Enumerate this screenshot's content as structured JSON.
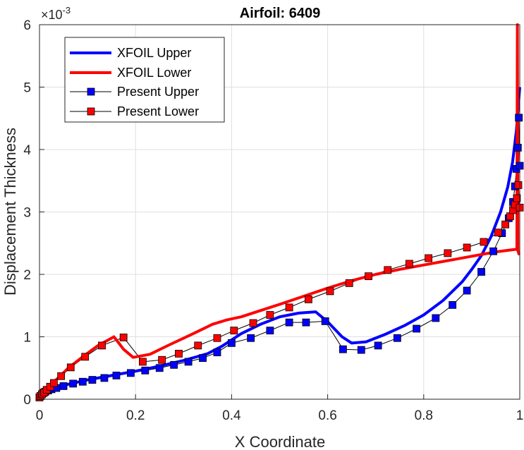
{
  "chart_data": {
    "type": "line",
    "title": "Airfoil: 6409",
    "xlabel": "X Coordinate",
    "ylabel": "Displacement Thickness",
    "xlim": [
      0,
      1
    ],
    "ylim": [
      0,
      0.006
    ],
    "y_exponent_label": "×10",
    "y_exponent_power": "-3",
    "grid": true,
    "legend_position": "top-left",
    "x_ticks": [
      "0",
      "0.2",
      "0.4",
      "0.6",
      "0.8",
      "1"
    ],
    "y_ticks": [
      "0",
      "1",
      "2",
      "3",
      "4",
      "5",
      "6"
    ],
    "series": [
      {
        "name": "XFOIL Upper",
        "color": "#0000ff",
        "style": "line",
        "x": [
          0,
          0.005,
          0.01,
          0.02,
          0.04,
          0.06,
          0.1,
          0.15,
          0.2,
          0.25,
          0.3,
          0.35,
          0.38,
          0.42,
          0.46,
          0.5,
          0.54,
          0.575,
          0.6,
          0.63,
          0.65,
          0.68,
          0.72,
          0.76,
          0.8,
          0.84,
          0.88,
          0.9,
          0.92,
          0.94,
          0.96,
          0.975,
          0.985,
          0.993,
          1.0
        ],
        "y": [
          3e-05,
          7e-05,
          0.0001,
          0.00014,
          0.0002,
          0.00024,
          0.00031,
          0.00038,
          0.00045,
          0.00053,
          0.00062,
          0.00073,
          0.00085,
          0.00105,
          0.0012,
          0.00132,
          0.00138,
          0.0014,
          0.00124,
          0.001,
          0.0009,
          0.00092,
          0.00104,
          0.00118,
          0.00135,
          0.00158,
          0.00188,
          0.00208,
          0.0023,
          0.0026,
          0.003,
          0.0034,
          0.0038,
          0.0043,
          0.005
        ]
      },
      {
        "name": "XFOIL Lower",
        "color": "#ff0000",
        "style": "line",
        "x": [
          0,
          0.005,
          0.01,
          0.02,
          0.04,
          0.06,
          0.09,
          0.12,
          0.155,
          0.175,
          0.195,
          0.23,
          0.27,
          0.32,
          0.36,
          0.39,
          0.42,
          0.46,
          0.5,
          0.55,
          0.6,
          0.65,
          0.7,
          0.75,
          0.8,
          0.85,
          0.9,
          0.95,
          0.98,
          0.99,
          0.994,
          0.995,
          0.996,
          0.997,
          0.998,
          1.0
        ],
        "y": [
          3e-05,
          8e-05,
          0.00012,
          0.0002,
          0.00035,
          0.0005,
          0.00068,
          0.00085,
          0.001,
          0.0008,
          0.00067,
          0.00072,
          0.00087,
          0.00105,
          0.0012,
          0.00127,
          0.00132,
          0.00142,
          0.00152,
          0.00165,
          0.00178,
          0.0019,
          0.002,
          0.00208,
          0.00215,
          0.00222,
          0.00229,
          0.00236,
          0.00239,
          0.0024,
          0.0024,
          0.006,
          0.00238,
          0.00236,
          0.00233,
          0.00232
        ]
      },
      {
        "name": "Present Upper",
        "color": "#0000ff",
        "style": "line-marker",
        "x": [
          0,
          0.002,
          0.005,
          0.008,
          0.012,
          0.018,
          0.025,
          0.035,
          0.05,
          0.07,
          0.09,
          0.11,
          0.135,
          0.16,
          0.19,
          0.22,
          0.25,
          0.28,
          0.31,
          0.34,
          0.37,
          0.4,
          0.44,
          0.48,
          0.52,
          0.555,
          0.595,
          0.632,
          0.67,
          0.705,
          0.745,
          0.785,
          0.825,
          0.86,
          0.89,
          0.92,
          0.945,
          0.963,
          0.977,
          0.986,
          0.99,
          0.993,
          0.996,
          0.998,
          1.0
        ],
        "y": [
          3e-05,
          5e-05,
          8e-05,
          0.0001,
          0.00012,
          0.00014,
          0.00016,
          0.00018,
          0.00021,
          0.00025,
          0.00028,
          0.00031,
          0.00034,
          0.00038,
          0.00042,
          0.00046,
          0.0005,
          0.00055,
          0.0006,
          0.00066,
          0.00075,
          0.0009,
          0.00098,
          0.0011,
          0.00123,
          0.00123,
          0.00125,
          0.0008,
          0.00079,
          0.00086,
          0.00098,
          0.00113,
          0.0013,
          0.00151,
          0.00174,
          0.00204,
          0.00237,
          0.00266,
          0.0029,
          0.00316,
          0.00341,
          0.00369,
          0.00403,
          0.00451,
          0.00374
        ]
      },
      {
        "name": "Present Lower",
        "color": "#ff0000",
        "style": "line-marker",
        "x": [
          0,
          0.002,
          0.005,
          0.01,
          0.015,
          0.022,
          0.03,
          0.045,
          0.065,
          0.095,
          0.13,
          0.175,
          0.215,
          0.255,
          0.29,
          0.33,
          0.37,
          0.405,
          0.445,
          0.48,
          0.52,
          0.56,
          0.605,
          0.645,
          0.685,
          0.725,
          0.77,
          0.81,
          0.85,
          0.89,
          0.925,
          0.955,
          0.97,
          0.98,
          0.986,
          0.99,
          0.994,
          0.997,
          1.0
        ],
        "y": [
          3e-05,
          5e-05,
          8e-05,
          0.00011,
          0.00015,
          0.0002,
          0.00026,
          0.00037,
          0.00051,
          0.00068,
          0.00086,
          0.00099,
          0.0006,
          0.00063,
          0.00073,
          0.00086,
          0.00098,
          0.0011,
          0.00122,
          0.00135,
          0.00147,
          0.0016,
          0.00173,
          0.00186,
          0.00197,
          0.00207,
          0.00217,
          0.00226,
          0.00234,
          0.00243,
          0.00252,
          0.00267,
          0.0028,
          0.00293,
          0.00303,
          0.00312,
          0.00322,
          0.00343,
          0.00307
        ]
      }
    ]
  }
}
